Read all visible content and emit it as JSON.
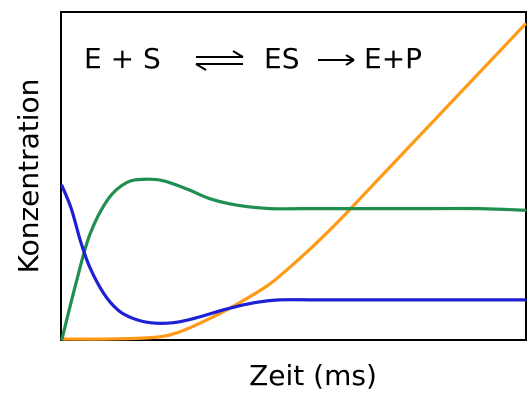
{
  "chart_data": {
    "type": "line",
    "title": "",
    "xlabel": "Zeit (ms)",
    "ylabel": "Konzentration",
    "annotation": {
      "left": "E + S",
      "arrow_symbol": "⇌",
      "middle": "ES",
      "arrow_forward": "→",
      "right": "E+P"
    },
    "xlim": [
      0,
      100
    ],
    "ylim": [
      0,
      100
    ],
    "grid": false,
    "legend": "none",
    "series": [
      {
        "color": "#ff9a17",
        "x": [
          0,
          10,
          20,
          25,
          30,
          35,
          40,
          45,
          50,
          55,
          60,
          65,
          70,
          75,
          80,
          85,
          90,
          95,
          100
        ],
        "values": [
          0,
          0,
          0.5,
          2,
          5,
          8.5,
          12.5,
          17,
          23,
          29.5,
          36.5,
          44,
          51.5,
          59,
          66.5,
          74,
          81.5,
          89,
          96.5
        ]
      },
      {
        "color": "#1f8f4f",
        "x": [
          0,
          3,
          6,
          10,
          14,
          18,
          22,
          27,
          32,
          38,
          45,
          52,
          60,
          70,
          80,
          90,
          100
        ],
        "values": [
          0,
          17,
          32,
          43,
          48,
          49,
          48.5,
          46,
          43,
          41,
          40,
          40,
          40,
          40,
          40,
          40,
          39.5
        ]
      },
      {
        "color": "#1f1fd6",
        "x": [
          0,
          2,
          4,
          6,
          9,
          12,
          15,
          19,
          24,
          29,
          35,
          41,
          47,
          55,
          65,
          75,
          85,
          100
        ],
        "values": [
          47,
          40,
          30,
          22,
          14,
          9,
          6.5,
          5,
          5,
          6.5,
          9,
          11,
          12,
          12,
          12,
          12,
          12,
          12
        ]
      }
    ]
  }
}
